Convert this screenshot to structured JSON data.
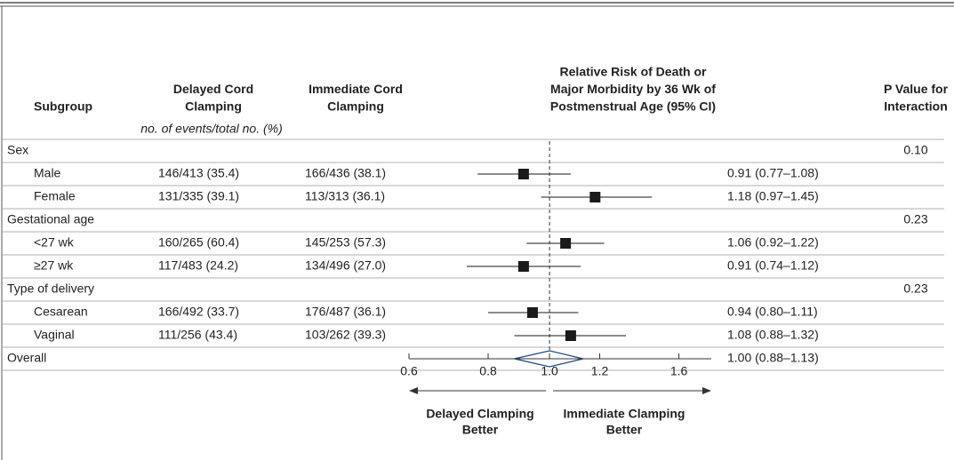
{
  "chart_data": {
    "type": "forest",
    "columns": [
      {
        "lines": [
          "Subgroup"
        ]
      },
      {
        "lines": [
          "Delayed Cord",
          "Clamping"
        ]
      },
      {
        "lines": [
          "Immediate Cord",
          "Clamping"
        ]
      },
      {
        "lines": [
          "Relative Risk of Death or",
          "Major Morbidity by 36 Wk of",
          "Postmenstrual Age (95% CI)"
        ]
      },
      {
        "lines": [
          "P Value for",
          "Interaction"
        ]
      }
    ],
    "subheader": "no. of events/total no. (%)",
    "rows": [
      {
        "label": "Sex",
        "p": "0.10"
      },
      {
        "label": "Male",
        "delayed": "146/413 (35.4)",
        "immediate": "166/436 (38.1)",
        "estimate": 0.91,
        "lower": 0.77,
        "upper": 1.08,
        "ci_label": "0.91 (0.77–1.08)"
      },
      {
        "label": "Female",
        "delayed": "131/335 (39.1)",
        "immediate": "113/313 (36.1)",
        "estimate": 1.18,
        "lower": 0.97,
        "upper": 1.45,
        "ci_label": "1.18 (0.97–1.45)"
      },
      {
        "label": "Gestational age",
        "p": "0.23"
      },
      {
        "label": "<27 wk",
        "delayed": "160/265 (60.4)",
        "immediate": "145/253 (57.3)",
        "estimate": 1.06,
        "lower": 0.92,
        "upper": 1.22,
        "ci_label": "1.06 (0.92–1.22)"
      },
      {
        "label": "≥27 wk",
        "delayed": "117/483 (24.2)",
        "immediate": "134/496 (27.0)",
        "estimate": 0.91,
        "lower": 0.74,
        "upper": 1.12,
        "ci_label": "0.91 (0.74–1.12)"
      },
      {
        "label": "Type of delivery",
        "p": "0.23"
      },
      {
        "label": "Cesarean",
        "delayed": "166/492 (33.7)",
        "immediate": "176/487 (36.1)",
        "estimate": 0.94,
        "lower": 0.8,
        "upper": 1.11,
        "ci_label": "0.94 (0.80–1.11)"
      },
      {
        "label": "Vaginal",
        "delayed": "111/256 (43.4)",
        "immediate": "103/262 (39.3)",
        "estimate": 1.08,
        "lower": 0.88,
        "upper": 1.32,
        "ci_label": "1.08 (0.88–1.32)"
      },
      {
        "label": "Overall",
        "estimate": 1.0,
        "lower": 0.88,
        "upper": 1.13,
        "ci_label": "1.00 (0.88–1.13)"
      }
    ],
    "xlim": [
      0.6,
      1.8
    ],
    "log_x": true,
    "xticks": [
      0.6,
      0.8,
      {
        "value": 1,
        "label": "1.0"
      },
      1.2,
      1.6
    ],
    "reference_line": 1,
    "color": "#1a1a1a",
    "left_label": [
      "Delayed Clamping",
      "Better"
    ],
    "right_label": [
      "Immediate Clamping",
      "Better"
    ]
  }
}
